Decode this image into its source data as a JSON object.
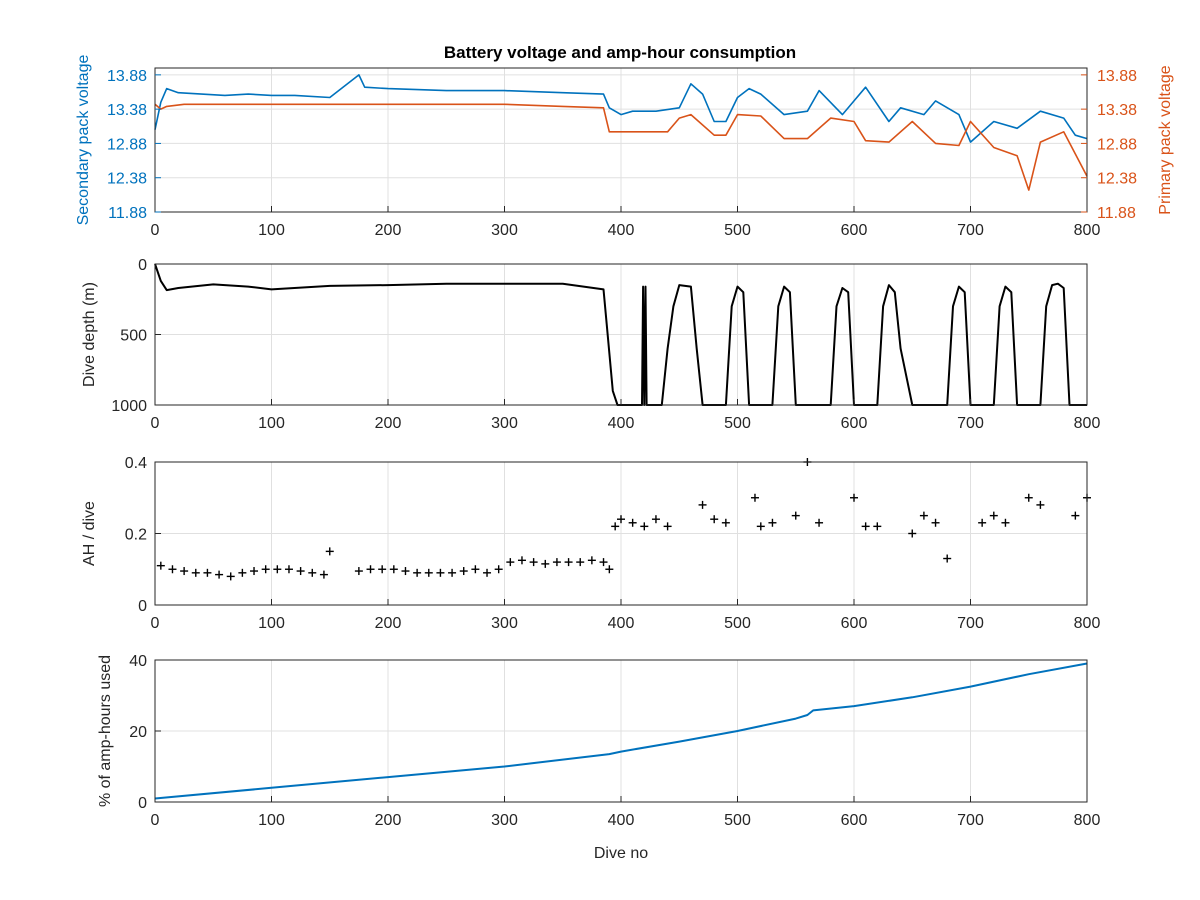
{
  "colors": {
    "secondary": "#0072bd",
    "primary": "#d95319",
    "black": "#000000",
    "grid": "#e0e0e0",
    "axis": "#262626"
  },
  "chart_data": [
    {
      "type": "line",
      "title": "Battery voltage and amp-hour consumption",
      "xlabel": "",
      "xlim": [
        0,
        800
      ],
      "x_ticks": [
        "0",
        "100",
        "200",
        "300",
        "400",
        "500",
        "600",
        "700",
        "800"
      ],
      "ylabel_left": "Secondary pack voltage",
      "ylabel_right": "Primary pack voltage",
      "ylim": [
        11.88,
        13.98
      ],
      "y_ticks_left": [
        "11.88",
        "12.38",
        "12.88",
        "13.38",
        "13.88"
      ],
      "y_ticks_right": [
        "11.88",
        "12.38",
        "12.88",
        "13.38",
        "13.88"
      ],
      "grid": true,
      "series": [
        {
          "name": "Secondary pack voltage",
          "axis": "left",
          "x": [
            0,
            5,
            10,
            20,
            40,
            60,
            80,
            100,
            120,
            150,
            175,
            180,
            200,
            250,
            300,
            350,
            385,
            390,
            400,
            410,
            430,
            450,
            460,
            470,
            480,
            490,
            500,
            510,
            520,
            540,
            560,
            570,
            590,
            600,
            610,
            630,
            640,
            660,
            670,
            690,
            700,
            720,
            740,
            760,
            780,
            790,
            800
          ],
          "y": [
            13.08,
            13.48,
            13.68,
            13.62,
            13.6,
            13.58,
            13.6,
            13.58,
            13.58,
            13.55,
            13.88,
            13.7,
            13.68,
            13.65,
            13.65,
            13.62,
            13.6,
            13.4,
            13.3,
            13.35,
            13.35,
            13.4,
            13.75,
            13.6,
            13.2,
            13.2,
            13.55,
            13.68,
            13.6,
            13.3,
            13.35,
            13.65,
            13.3,
            13.5,
            13.7,
            13.2,
            13.4,
            13.3,
            13.5,
            13.3,
            12.9,
            13.2,
            13.1,
            13.35,
            13.25,
            13.0,
            12.95
          ]
        },
        {
          "name": "Primary pack voltage",
          "axis": "right",
          "x": [
            0,
            5,
            10,
            25,
            50,
            100,
            150,
            200,
            250,
            300,
            350,
            385,
            390,
            400,
            420,
            440,
            450,
            460,
            480,
            490,
            500,
            520,
            540,
            560,
            580,
            600,
            610,
            630,
            650,
            670,
            690,
            700,
            720,
            740,
            750,
            760,
            780,
            800
          ],
          "y": [
            13.45,
            13.38,
            13.42,
            13.45,
            13.45,
            13.45,
            13.45,
            13.45,
            13.45,
            13.45,
            13.42,
            13.4,
            13.05,
            13.05,
            13.05,
            13.05,
            13.25,
            13.3,
            13.0,
            13.0,
            13.3,
            13.28,
            12.95,
            12.95,
            13.25,
            13.2,
            12.92,
            12.9,
            13.2,
            12.88,
            12.85,
            13.2,
            12.82,
            12.7,
            12.2,
            12.9,
            13.05,
            12.4
          ]
        }
      ]
    },
    {
      "type": "line",
      "xlabel": "",
      "ylabel": "Dive depth (m)",
      "xlim": [
        0,
        800
      ],
      "ylim": [
        0,
        1000
      ],
      "y_reversed": true,
      "x_ticks": [
        "0",
        "100",
        "200",
        "300",
        "400",
        "500",
        "600",
        "700",
        "800"
      ],
      "y_ticks": [
        "0",
        "500",
        "1000"
      ],
      "grid": true,
      "series": [
        {
          "name": "",
          "x": [
            0,
            5,
            10,
            20,
            50,
            80,
            100,
            150,
            200,
            250,
            300,
            350,
            385,
            388,
            393,
            397,
            400,
            418,
            419,
            420,
            421,
            422,
            435,
            440,
            445,
            450,
            460,
            465,
            470,
            480,
            490,
            495,
            500,
            505,
            510,
            520,
            530,
            535,
            540,
            545,
            550,
            560,
            580,
            585,
            590,
            595,
            600,
            605,
            620,
            625,
            630,
            635,
            640,
            650,
            655,
            660,
            670,
            680,
            685,
            690,
            695,
            700,
            710,
            720,
            725,
            730,
            735,
            740,
            760,
            765,
            770,
            775,
            780,
            785,
            790,
            800
          ],
          "y": [
            0,
            120,
            185,
            170,
            145,
            160,
            180,
            155,
            150,
            140,
            140,
            140,
            180,
            450,
            900,
            1000,
            1000,
            1000,
            160,
            1000,
            160,
            1000,
            1000,
            600,
            300,
            150,
            160,
            600,
            1000,
            1000,
            1000,
            300,
            160,
            200,
            1000,
            1000,
            1000,
            300,
            160,
            200,
            1000,
            1000,
            1000,
            300,
            170,
            200,
            1000,
            1000,
            1000,
            300,
            150,
            200,
            600,
            1000,
            1000,
            1000,
            1000,
            1000,
            300,
            160,
            200,
            1000,
            1000,
            1000,
            300,
            160,
            200,
            1000,
            1000,
            300,
            150,
            140,
            170,
            1000,
            1000,
            1000
          ]
        }
      ]
    },
    {
      "type": "scatter",
      "xlabel": "",
      "ylabel": "AH / dive",
      "xlim": [
        0,
        800
      ],
      "ylim": [
        0,
        0.4
      ],
      "x_ticks": [
        "0",
        "100",
        "200",
        "300",
        "400",
        "500",
        "600",
        "700",
        "800"
      ],
      "y_ticks": [
        "0",
        "0.2",
        "0.4"
      ],
      "grid": true,
      "series": [
        {
          "name": "",
          "x": [
            5,
            15,
            25,
            35,
            45,
            55,
            65,
            75,
            85,
            95,
            105,
            115,
            125,
            135,
            145,
            150,
            175,
            185,
            195,
            205,
            215,
            225,
            235,
            245,
            255,
            265,
            275,
            285,
            295,
            305,
            315,
            325,
            335,
            345,
            355,
            365,
            375,
            385,
            390,
            395,
            400,
            410,
            420,
            430,
            440,
            470,
            480,
            490,
            515,
            520,
            530,
            550,
            560,
            570,
            600,
            610,
            620,
            650,
            660,
            670,
            680,
            710,
            720,
            730,
            750,
            760,
            790,
            800
          ],
          "y": [
            0.11,
            0.1,
            0.095,
            0.09,
            0.09,
            0.085,
            0.08,
            0.09,
            0.095,
            0.1,
            0.1,
            0.1,
            0.095,
            0.09,
            0.085,
            0.15,
            0.095,
            0.1,
            0.1,
            0.1,
            0.095,
            0.09,
            0.09,
            0.09,
            0.09,
            0.095,
            0.1,
            0.09,
            0.1,
            0.12,
            0.125,
            0.12,
            0.115,
            0.12,
            0.12,
            0.12,
            0.125,
            0.12,
            0.1,
            0.22,
            0.24,
            0.23,
            0.22,
            0.24,
            0.22,
            0.28,
            0.24,
            0.23,
            0.3,
            0.22,
            0.23,
            0.25,
            0.4,
            0.23,
            0.3,
            0.22,
            0.22,
            0.2,
            0.25,
            0.23,
            0.13,
            0.23,
            0.25,
            0.23,
            0.3,
            0.28,
            0.25,
            0.3
          ]
        }
      ]
    },
    {
      "type": "line",
      "xlabel": "Dive no",
      "ylabel": "% of amp-hours used",
      "xlim": [
        0,
        800
      ],
      "ylim": [
        0,
        40
      ],
      "x_ticks": [
        "0",
        "100",
        "200",
        "300",
        "400",
        "500",
        "600",
        "700",
        "800"
      ],
      "y_ticks": [
        "0",
        "20",
        "40"
      ],
      "grid": true,
      "series": [
        {
          "name": "",
          "x": [
            0,
            100,
            200,
            300,
            390,
            400,
            450,
            500,
            550,
            560,
            565,
            600,
            650,
            700,
            750,
            800
          ],
          "y": [
            1,
            4,
            7,
            10,
            13.5,
            14.2,
            17,
            20,
            23.5,
            24.5,
            25.8,
            27,
            29.5,
            32.5,
            36,
            39
          ]
        }
      ]
    }
  ]
}
